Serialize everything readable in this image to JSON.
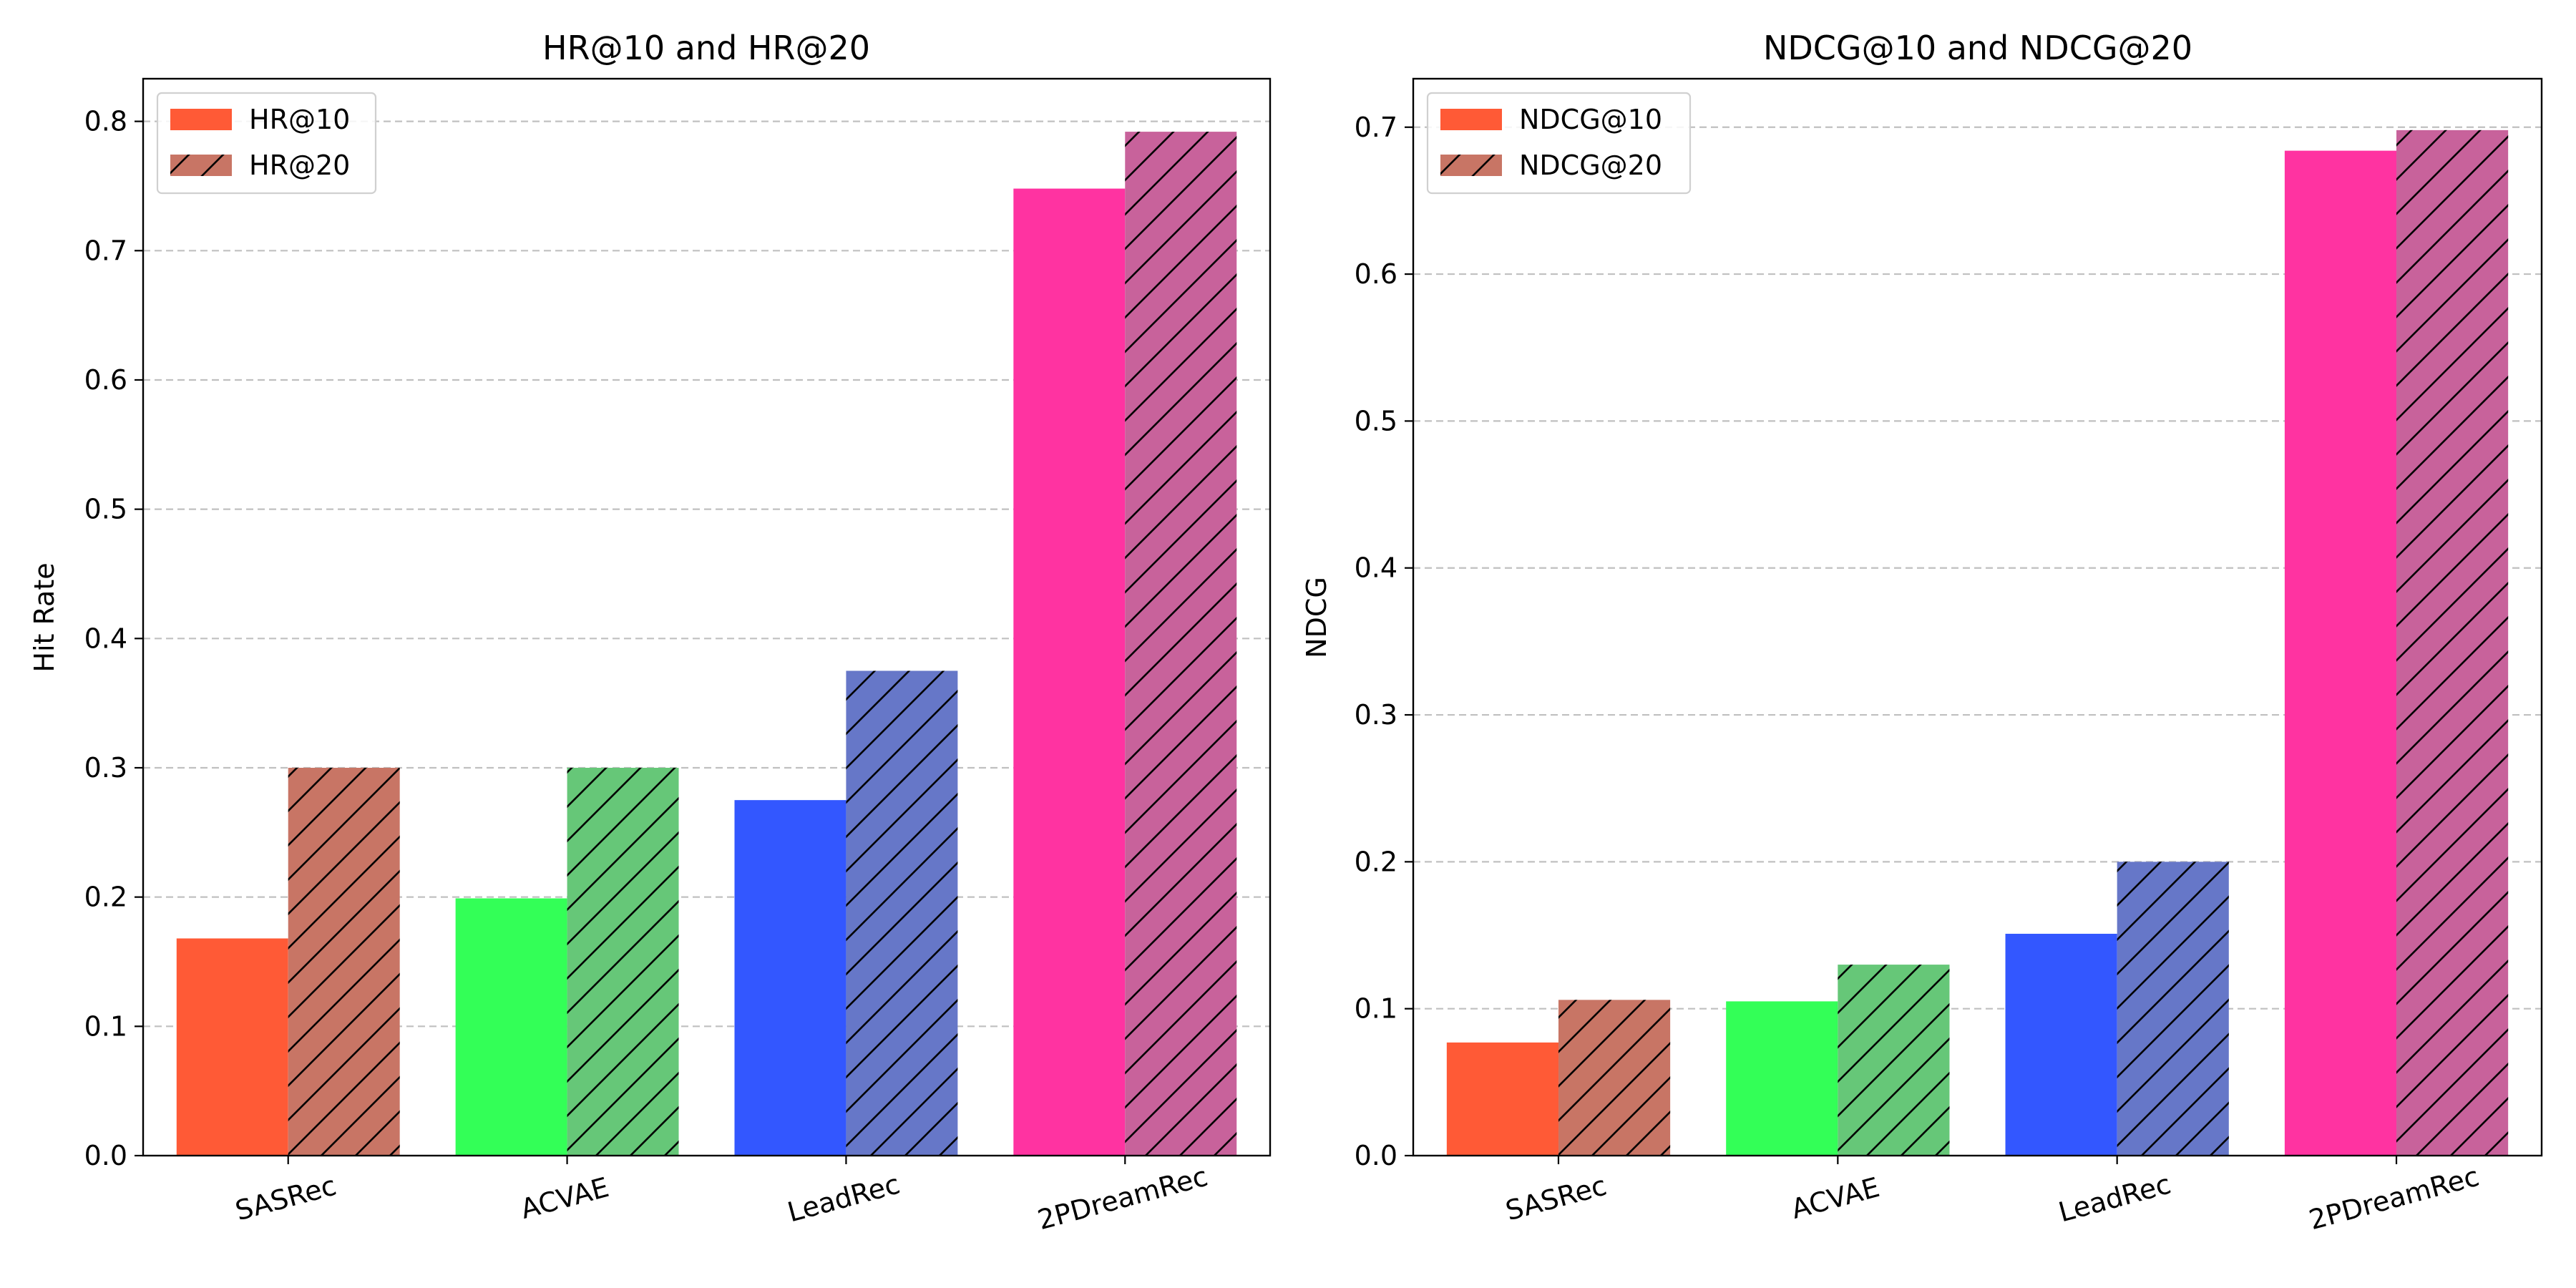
{
  "chart_data": [
    {
      "type": "bar",
      "title": "HR@10 and HR@20",
      "xlabel": "",
      "ylabel": "Hit Rate",
      "categories": [
        "SASRec",
        "ACVAE",
        "LeadRec",
        "2PDreamRec"
      ],
      "ylim": [
        0,
        0.833
      ],
      "yticks": [
        "0.0",
        "0.1",
        "0.2",
        "0.3",
        "0.4",
        "0.5",
        "0.6",
        "0.7",
        "0.8"
      ],
      "ytick_values": [
        0,
        0.1,
        0.2,
        0.3,
        0.4,
        0.5,
        0.6,
        0.7,
        0.8
      ],
      "grid": "y-dashed",
      "legend_position": "top-left",
      "series": [
        {
          "name": "HR@10",
          "values": [
            0.168,
            0.199,
            0.275,
            0.748
          ],
          "hatch": false
        },
        {
          "name": "HR@20",
          "values": [
            0.3,
            0.3,
            0.375,
            0.792
          ],
          "hatch": true
        }
      ]
    },
    {
      "type": "bar",
      "title": "NDCG@10 and NDCG@20",
      "xlabel": "",
      "ylabel": "NDCG",
      "categories": [
        "SASRec",
        "ACVAE",
        "LeadRec",
        "2PDreamRec"
      ],
      "ylim": [
        0,
        0.733
      ],
      "yticks": [
        "0.0",
        "0.1",
        "0.2",
        "0.3",
        "0.4",
        "0.5",
        "0.6",
        "0.7"
      ],
      "ytick_values": [
        0,
        0.1,
        0.2,
        0.3,
        0.4,
        0.5,
        0.6,
        0.7
      ],
      "grid": "y-dashed",
      "legend_position": "top-left",
      "series": [
        {
          "name": "NDCG@10",
          "values": [
            0.077,
            0.105,
            0.151,
            0.684
          ],
          "hatch": false
        },
        {
          "name": "NDCG@20",
          "values": [
            0.106,
            0.13,
            0.2,
            0.698
          ],
          "hatch": true
        }
      ]
    }
  ],
  "colors": {
    "solid": [
      "#ff5a36",
      "#33ff57",
      "#3357ff",
      "#ff33a1"
    ],
    "hatched": [
      "#c87565",
      "#66c778",
      "#6677c8",
      "#c8629b"
    ],
    "hatch_line": "#000000",
    "grid": "#c0c0c0",
    "axis": "#000000",
    "legend_border": "#d0d0d0"
  }
}
